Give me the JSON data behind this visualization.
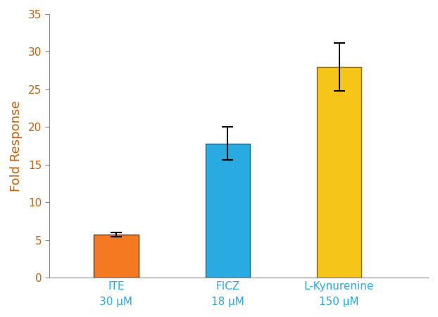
{
  "categories": [
    "ITE\n30 μM",
    "FICZ\n18 μM",
    "L-Kynurenine\n150 μM"
  ],
  "values": [
    5.7,
    17.8,
    28.0
  ],
  "errors": [
    0.3,
    2.2,
    3.2
  ],
  "bar_colors": [
    "#F47920",
    "#29ABE2",
    "#F5C518"
  ],
  "bar_edge_colors": [
    "#5C3D1E",
    "#1A6B8A",
    "#8A6A00"
  ],
  "ylabel": "Fold Response",
  "ylabel_color": "#C8600A",
  "tick_label_color": "#29ABE2",
  "ytick_label_color": "#C8600A",
  "ylim": [
    0,
    35
  ],
  "yticks": [
    0,
    5,
    10,
    15,
    20,
    25,
    30,
    35
  ],
  "background_color": "#FFFFFF",
  "spine_color": "#888888",
  "bar_width": 0.4,
  "figsize": [
    6.22,
    4.5
  ],
  "dpi": 100,
  "xlim": [
    -0.6,
    2.8
  ]
}
